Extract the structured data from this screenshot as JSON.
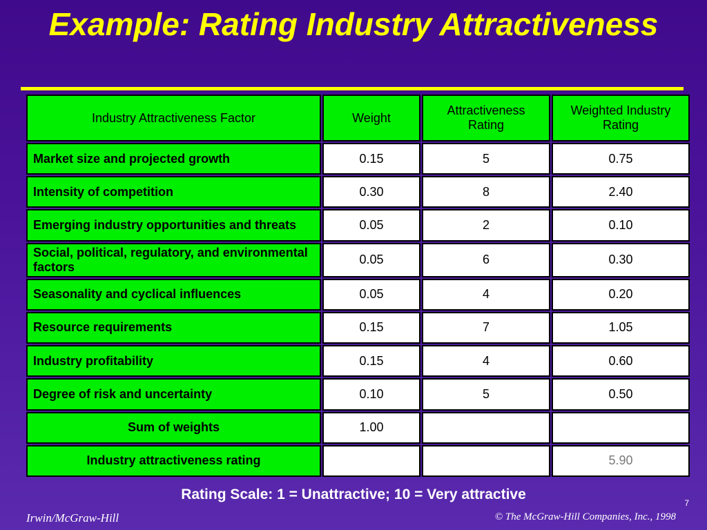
{
  "slide": {
    "title": "Example:  Rating  Industry Attractiveness",
    "rating_scale": "Rating Scale:  1 = Unattractive; 10 = Very attractive",
    "footer_left": "Irwin/McGraw-Hill",
    "footer_right": "© The McGraw-Hill Companies, Inc., 1998",
    "page_number": "7"
  },
  "table": {
    "headers": [
      "Industry  Attractiveness  Factor",
      "Weight",
      "Attractiveness Rating",
      "Weighted Industry  Rating"
    ],
    "rows": [
      [
        "Market size and projected growth",
        "0.15",
        "5",
        "0.75"
      ],
      [
        "Intensity of competition",
        "0.30",
        "8",
        "2.40"
      ],
      [
        "Emerging industry opportunities and threats",
        "0.05",
        "2",
        "0.10"
      ],
      [
        "Social, political, regulatory, and environmental factors",
        "0.05",
        "6",
        "0.30"
      ],
      [
        "Seasonality and cyclical influences",
        "0.05",
        "4",
        "0.20"
      ],
      [
        "Resource requirements",
        "0.15",
        "7",
        "1.05"
      ],
      [
        "Industry profitability",
        "0.15",
        "4",
        "0.60"
      ],
      [
        "Degree of  risk and uncertainty",
        "0.10",
        "5",
        "0.50"
      ],
      [
        "Sum of weights",
        "1.00",
        "",
        ""
      ],
      [
        "Industry attractiveness rating",
        "",
        "",
        "5.90"
      ]
    ]
  }
}
